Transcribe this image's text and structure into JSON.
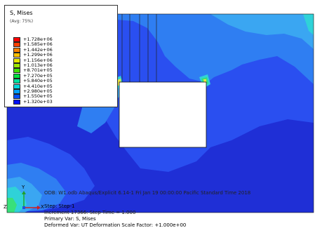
{
  "viewport": {
    "colors": {
      "deep_blue": "#1f2fd6",
      "mid_blue": "#2a4ff0",
      "light_blue": "#2f7ef2",
      "sky_blue": "#3aa6f2",
      "cyan": "#2fd2d8",
      "green": "#38e07a",
      "yellow": "#e8e642"
    }
  },
  "legend": {
    "title": "S, Mises",
    "subtitle_line1": "(Avg: 75%)",
    "entries": [
      {
        "value": "+1.728e+06",
        "color": "#ff0000"
      },
      {
        "value": "+1.585e+06",
        "color": "#ff4000"
      },
      {
        "value": "+1.442e+06",
        "color": "#ff8000"
      },
      {
        "value": "+1.299e+06",
        "color": "#ffc000"
      },
      {
        "value": "+1.156e+06",
        "color": "#e8e800"
      },
      {
        "value": "+1.013e+06",
        "color": "#9fe800"
      },
      {
        "value": "+8.701e+05",
        "color": "#40e000"
      },
      {
        "value": "+7.270e+05",
        "color": "#00e040"
      },
      {
        "value": "+5.840e+05",
        "color": "#00e0a0"
      },
      {
        "value": "+4.410e+05",
        "color": "#00d8e0"
      },
      {
        "value": "+2.980e+05",
        "color": "#00a0ff"
      },
      {
        "value": "+1.550e+05",
        "color": "#0050ff"
      },
      {
        "value": "+1.320e+03",
        "color": "#0010ff"
      }
    ]
  },
  "status": {
    "odb_line": "ODB: W1.odb    Abaqus/Explicit 6.14-1    Fri Jan 19 00:00:00 Pacific Standard Time 2018",
    "step_line": "Step: Step-1",
    "increment_line": "Increment     17366: Step Time =    1.000",
    "primary_var": "Primary Var: S, Mises",
    "deformed_var": "Deformed Var: UT   Deformation Scale Factor: +1.000e+00"
  },
  "triad": {
    "y_label": "Y",
    "x_label": "X",
    "z_label": "Z"
  }
}
